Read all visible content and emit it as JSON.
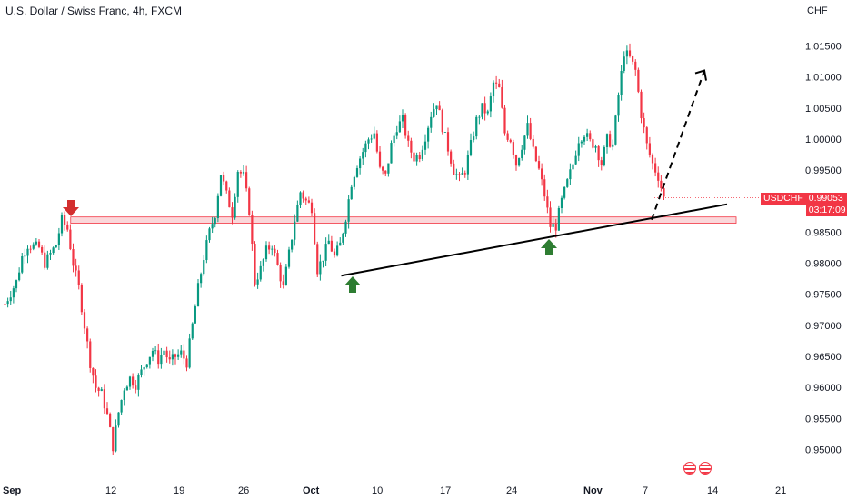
{
  "header": {
    "title": "U.S. Dollar / Swiss Franc, 4h, FXCM",
    "currency": "CHF"
  },
  "price_tag": {
    "symbol": "USDCHF",
    "price": "0.99053",
    "countdown": "03:17:09"
  },
  "colors": {
    "up": "#26a69a",
    "up_candle": "#089981",
    "down": "#f23645",
    "zone_fill": "#f8c9cd",
    "zone_stroke": "#f23645",
    "trendline": "#000000",
    "arrow_down": "#d32f2f",
    "arrow_up": "#2e7d32"
  },
  "chart_data": {
    "type": "candlestick",
    "title": "U.S. Dollar / Swiss Franc, 4h, FXCM",
    "y_unit": "CHF",
    "ylim": [
      0.9475,
      1.0205
    ],
    "y_ticks": [
      "1.01500",
      "1.01000",
      "1.00500",
      "1.00000",
      "0.99500",
      "0.99000",
      "0.98500",
      "0.98000",
      "0.97500",
      "0.97000",
      "0.96500",
      "0.96000",
      "0.95500",
      "0.95000"
    ],
    "x_ticks": [
      {
        "label": "Sep",
        "bold": true
      },
      {
        "label": "12",
        "bold": false
      },
      {
        "label": "19",
        "bold": false
      },
      {
        "label": "26",
        "bold": false
      },
      {
        "label": "Oct",
        "bold": true
      },
      {
        "label": "10",
        "bold": false
      },
      {
        "label": "17",
        "bold": false
      },
      {
        "label": "24",
        "bold": false
      },
      {
        "label": "Nov",
        "bold": true
      },
      {
        "label": "7",
        "bold": false
      },
      {
        "label": "14",
        "bold": false
      },
      {
        "label": "21",
        "bold": false
      }
    ],
    "swing_path_close": [
      [
        0,
        0.9735
      ],
      [
        2,
        0.977
      ],
      [
        3,
        0.981
      ],
      [
        4,
        0.983
      ],
      [
        6,
        0.9825
      ],
      [
        7,
        0.98
      ],
      [
        9,
        0.983
      ],
      [
        10,
        0.987
      ],
      [
        11,
        0.9855
      ],
      [
        12,
        0.98
      ],
      [
        13,
        0.976
      ],
      [
        14,
        0.97
      ],
      [
        15,
        0.964
      ],
      [
        16,
        0.96
      ],
      [
        17,
        0.959
      ],
      [
        18,
        0.9555
      ],
      [
        19,
        0.9505
      ],
      [
        20,
        0.956
      ],
      [
        21,
        0.96
      ],
      [
        22,
        0.9615
      ],
      [
        23,
        0.9605
      ],
      [
        24,
        0.9625
      ],
      [
        25,
        0.9645
      ],
      [
        26,
        0.966
      ],
      [
        27,
        0.9645
      ],
      [
        28,
        0.966
      ],
      [
        29,
        0.964
      ],
      [
        30,
        0.965
      ],
      [
        31,
        0.9655
      ],
      [
        32,
        0.964
      ],
      [
        33,
        0.97
      ],
      [
        34,
        0.976
      ],
      [
        35,
        0.981
      ],
      [
        36,
        0.985
      ],
      [
        37,
        0.988
      ],
      [
        38,
        0.9945
      ],
      [
        39,
        0.991
      ],
      [
        40,
        0.988
      ],
      [
        41,
        0.995
      ],
      [
        42,
        0.994
      ],
      [
        43,
        0.9885
      ],
      [
        44,
        0.977
      ],
      [
        45,
        0.979
      ],
      [
        46,
        0.982
      ],
      [
        47,
        0.983
      ],
      [
        48,
        0.9795
      ],
      [
        49,
        0.976
      ],
      [
        50,
        0.9815
      ],
      [
        51,
        0.987
      ],
      [
        52,
        0.9915
      ],
      [
        53,
        0.99
      ],
      [
        54,
        0.989
      ],
      [
        55,
        0.979
      ],
      [
        56,
        0.981
      ],
      [
        57,
        0.9835
      ],
      [
        58,
        0.981
      ],
      [
        59,
        0.983
      ],
      [
        60,
        0.9875
      ],
      [
        61,
        0.993
      ],
      [
        62,
        0.996
      ],
      [
        63,
        0.998
      ],
      [
        64,
        1.0
      ],
      [
        65,
        1.001
      ],
      [
        66,
        0.995
      ],
      [
        67,
        0.994
      ],
      [
        68,
        0.999
      ],
      [
        69,
        1.002
      ],
      [
        70,
        1.003
      ],
      [
        71,
        0.999
      ],
      [
        72,
        0.997
      ],
      [
        73,
        0.9975
      ],
      [
        74,
        1.0005
      ],
      [
        75,
        1.004
      ],
      [
        76,
        1.006
      ],
      [
        77,
        1.002
      ],
      [
        78,
        0.9985
      ],
      [
        79,
        0.995
      ],
      [
        80,
        0.9935
      ],
      [
        81,
        0.995
      ],
      [
        82,
        0.999
      ],
      [
        83,
        1.003
      ],
      [
        84,
        1.005
      ],
      [
        85,
        1.004
      ],
      [
        86,
        1.009
      ],
      [
        87,
        1.008
      ],
      [
        88,
        1.001
      ],
      [
        89,
        1.0
      ],
      [
        90,
        0.996
      ],
      [
        91,
        0.999
      ],
      [
        92,
        1.002
      ],
      [
        93,
        0.998
      ],
      [
        94,
        0.995
      ],
      [
        95,
        0.991
      ],
      [
        96,
        0.986
      ],
      [
        97,
        0.986
      ],
      [
        98,
        0.99
      ],
      [
        99,
        0.993
      ],
      [
        100,
        0.996
      ],
      [
        101,
        1.0
      ],
      [
        102,
        1.001
      ],
      [
        103,
        0.9995
      ],
      [
        104,
        0.999
      ],
      [
        105,
        0.996
      ],
      [
        106,
        1.0
      ],
      [
        107,
        0.999
      ],
      [
        108,
        1.007
      ],
      [
        109,
        1.014
      ],
      [
        110,
        1.013
      ],
      [
        111,
        1.011
      ],
      [
        112,
        1.004
      ],
      [
        113,
        0.999
      ],
      [
        114,
        0.996
      ],
      [
        115,
        0.994
      ],
      [
        116,
        0.9905
      ]
    ],
    "support_zone": {
      "low": 0.98645,
      "high": 0.98745,
      "from_index": 9,
      "to_extends": "right"
    },
    "trendline": {
      "from": {
        "index": 48,
        "price": 0.978
      },
      "to": {
        "index": 120,
        "price": 0.9895
      }
    },
    "projection": {
      "from": {
        "index": 116,
        "price": 0.987
      },
      "to": {
        "index": 129,
        "price": 1.0125
      },
      "style": "dashed-arrow"
    },
    "markers": [
      {
        "type": "arrow-down",
        "index": 9,
        "price": 0.9895
      },
      {
        "type": "arrow-up",
        "index": 47,
        "price": 0.977
      },
      {
        "type": "arrow-up",
        "index": 98,
        "price": 0.9833
      }
    ],
    "last_price": 0.99053
  }
}
